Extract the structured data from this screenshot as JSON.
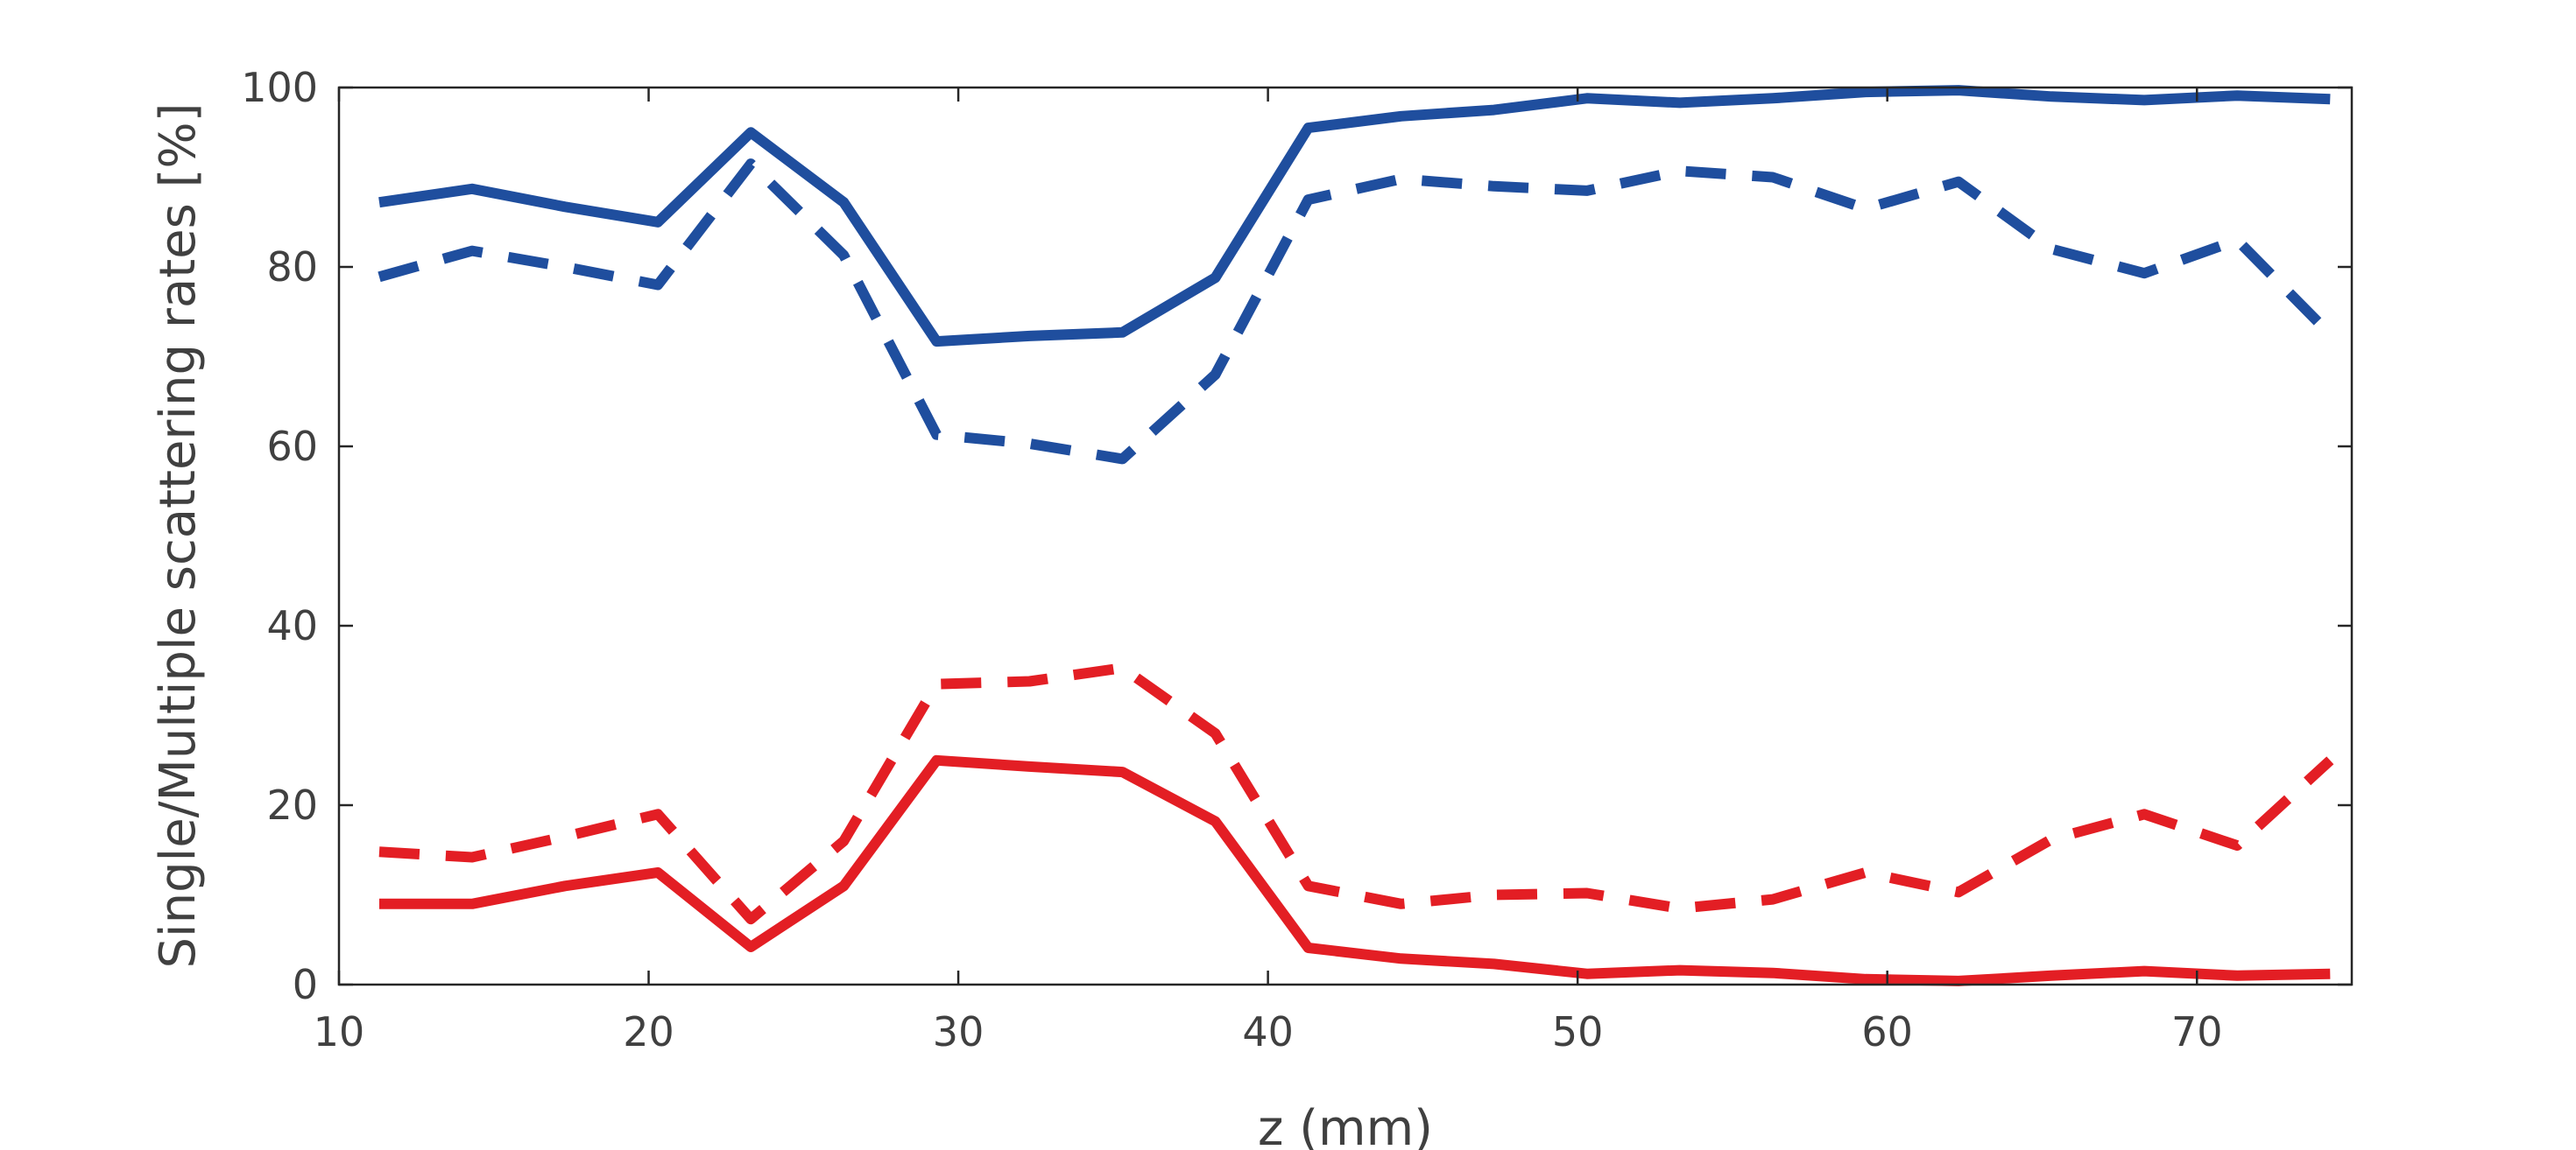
{
  "chart_data": {
    "type": "line",
    "title": "",
    "xlabel": "z (mm)",
    "ylabel": "Single/Multiple scattering rates [%]",
    "xlim": [
      10,
      75
    ],
    "ylim": [
      0,
      100
    ],
    "xticks": [
      "10",
      "20",
      "30",
      "40",
      "50",
      "60",
      "70"
    ],
    "yticks": [
      "0",
      "20",
      "40",
      "60",
      "80",
      "100"
    ],
    "grid": false,
    "legend": "none",
    "x": [
      11.3,
      14.3,
      17.3,
      20.3,
      23.3,
      26.3,
      29.3,
      32.3,
      35.3,
      38.3,
      41.3,
      44.3,
      47.3,
      50.3,
      53.3,
      56.3,
      59.3,
      62.3,
      65.3,
      68.3,
      71.3,
      74.3
    ],
    "series": [
      {
        "name": "blue-solid",
        "color": "#1f4e9e",
        "style": "solid",
        "values": [
          87.2,
          88.7,
          86.7,
          85.0,
          95.0,
          87.2,
          71.7,
          72.3,
          72.7,
          78.8,
          95.5,
          96.8,
          97.5,
          98.8,
          98.3,
          98.8,
          99.5,
          99.7,
          99.0,
          98.6,
          99.1,
          98.7
        ]
      },
      {
        "name": "blue-dashed",
        "color": "#1f4e9e",
        "style": "dashed",
        "values": [
          78.9,
          81.8,
          80.0,
          78.0,
          91.5,
          81.3,
          61.3,
          60.3,
          58.6,
          68.0,
          87.5,
          89.8,
          89.0,
          88.5,
          90.7,
          90.0,
          86.5,
          89.5,
          82.0,
          79.3,
          83.0,
          72.5
        ]
      },
      {
        "name": "red-dashed",
        "color": "#e31e24",
        "style": "dashed",
        "values": [
          14.8,
          14.2,
          16.5,
          19.0,
          7.3,
          16.0,
          33.5,
          33.8,
          35.3,
          28.0,
          11.0,
          9.0,
          10.0,
          10.2,
          8.5,
          9.5,
          12.5,
          10.3,
          16.2,
          19.0,
          15.5,
          25.0
        ]
      },
      {
        "name": "red-solid",
        "color": "#e31e24",
        "style": "solid",
        "values": [
          9.0,
          9.0,
          11.0,
          12.5,
          4.2,
          11.0,
          25.0,
          24.3,
          23.7,
          18.2,
          4.1,
          2.9,
          2.3,
          1.2,
          1.6,
          1.3,
          0.6,
          0.4,
          1.0,
          1.5,
          1.0,
          1.2
        ]
      }
    ]
  }
}
